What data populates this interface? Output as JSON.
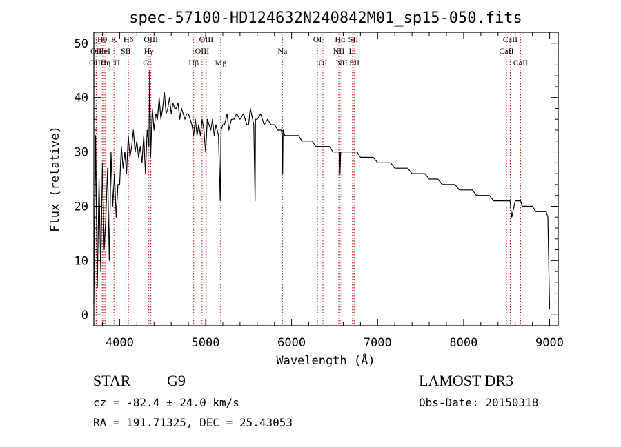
{
  "chart_data": {
    "type": "line",
    "title": "spec-57100-HD124632N240842M01_sp15-050.fits",
    "xlabel": "Wavelength (Å)",
    "ylabel": "Flux (relative)",
    "xlim": [
      3700,
      9100
    ],
    "ylim": [
      -2,
      52
    ],
    "xticks": [
      4000,
      5000,
      6000,
      7000,
      8000,
      9000
    ],
    "yticks": [
      0,
      10,
      20,
      30,
      40,
      50
    ],
    "series": [
      {
        "name": "spectrum",
        "x": [
          3700,
          3720,
          3740,
          3760,
          3780,
          3800,
          3820,
          3840,
          3860,
          3880,
          3900,
          3920,
          3940,
          3960,
          3980,
          4000,
          4020,
          4040,
          4060,
          4080,
          4100,
          4120,
          4140,
          4160,
          4180,
          4200,
          4220,
          4240,
          4260,
          4280,
          4300,
          4320,
          4340,
          4350,
          4360,
          4380,
          4400,
          4420,
          4440,
          4460,
          4480,
          4500,
          4520,
          4540,
          4560,
          4580,
          4600,
          4620,
          4640,
          4660,
          4680,
          4700,
          4720,
          4740,
          4760,
          4780,
          4800,
          4820,
          4840,
          4860,
          4880,
          4900,
          4920,
          4940,
          4960,
          4980,
          5000,
          5020,
          5040,
          5060,
          5080,
          5100,
          5120,
          5150,
          5170,
          5180,
          5200,
          5220,
          5250,
          5270,
          5300,
          5330,
          5360,
          5400,
          5440,
          5480,
          5500,
          5520,
          5560,
          5575,
          5580,
          5600,
          5640,
          5680,
          5720,
          5760,
          5800,
          5840,
          5880,
          5890,
          5896,
          5900,
          5920,
          5960,
          6000,
          6040,
          6080,
          6120,
          6160,
          6200,
          6240,
          6280,
          6320,
          6360,
          6400,
          6440,
          6480,
          6520,
          6560,
          6563,
          6570,
          6600,
          6640,
          6680,
          6720,
          6760,
          6800,
          6850,
          6900,
          6950,
          7000,
          7050,
          7100,
          7150,
          7200,
          7250,
          7300,
          7350,
          7400,
          7450,
          7500,
          7550,
          7600,
          7650,
          7700,
          7750,
          7800,
          7850,
          7900,
          7950,
          8000,
          8050,
          8100,
          8150,
          8200,
          8250,
          8300,
          8350,
          8400,
          8450,
          8500,
          8540,
          8560,
          8600,
          8640,
          8662,
          8680,
          8720,
          8760,
          8800,
          8840,
          8880,
          8920,
          8960,
          8980,
          9000
        ],
        "values": [
          2,
          33,
          5,
          25,
          8,
          28,
          12,
          18,
          27,
          10,
          30,
          20,
          26,
          18,
          24,
          24,
          31,
          27,
          30,
          26,
          33,
          29,
          31,
          34,
          30,
          32,
          29,
          31,
          28,
          33,
          26,
          34,
          31,
          45,
          29,
          38,
          34,
          37,
          36,
          40,
          36,
          38,
          41,
          37,
          38,
          40,
          37,
          39,
          38,
          38,
          39,
          36,
          38,
          37,
          36,
          37,
          37,
          36,
          35,
          33,
          36,
          33,
          35,
          33,
          36,
          34,
          30,
          36,
          35,
          34,
          36,
          33,
          35,
          33,
          21,
          34,
          35,
          35,
          37,
          34,
          36,
          36,
          37,
          36,
          37,
          35,
          35,
          38,
          35,
          21,
          36,
          36,
          37,
          35,
          36,
          35,
          35,
          34,
          34,
          33,
          26,
          34,
          33,
          33,
          33,
          33,
          33,
          32,
          32,
          32,
          32,
          31,
          31,
          31,
          31,
          31,
          30,
          30,
          30,
          26,
          30,
          30,
          30,
          30,
          30,
          30,
          29,
          29,
          29,
          29,
          28,
          28,
          28,
          28,
          27,
          27,
          27,
          27,
          26,
          26,
          26,
          26,
          25,
          25,
          25,
          24,
          24,
          24,
          24,
          23,
          23,
          23,
          23,
          22,
          22,
          22,
          22,
          21,
          21,
          21,
          21,
          21,
          18,
          21,
          21,
          21,
          20,
          20,
          20,
          20,
          19,
          19,
          19,
          19,
          18,
          1
        ]
      }
    ],
    "lines": [
      {
        "label": "OII",
        "wl": 3727,
        "tier": 1
      },
      {
        "label": "OIII",
        "wl": 3727,
        "tier": 2
      },
      {
        "label": "Hθ",
        "wl": 3798,
        "tier": 0
      },
      {
        "label": "HeI",
        "wl": 3820,
        "tier": 1
      },
      {
        "label": "Hη",
        "wl": 3835,
        "tier": 2
      },
      {
        "label": "K",
        "wl": 3934,
        "tier": 0
      },
      {
        "label": "H",
        "wl": 3969,
        "tier": 2
      },
      {
        "label": "SII",
        "wl": 4072,
        "tier": 1
      },
      {
        "label": "Hδ",
        "wl": 4102,
        "tier": 0
      },
      {
        "label": "OIII",
        "wl": 4363,
        "tier": 0
      },
      {
        "label": "Hγ",
        "wl": 4340,
        "tier": 1
      },
      {
        "label": "G",
        "wl": 4305,
        "tier": 2
      },
      {
        "label": "Hβ",
        "wl": 4861,
        "tier": 2
      },
      {
        "label": "OIII",
        "wl": 5007,
        "tier": 0
      },
      {
        "label": "OIII",
        "wl": 4959,
        "tier": 1
      },
      {
        "label": "Mg",
        "wl": 5175,
        "tier": 2
      },
      {
        "label": "Na",
        "wl": 5893,
        "tier": 1
      },
      {
        "label": "OI",
        "wl": 6300,
        "tier": 0
      },
      {
        "label": "OI",
        "wl": 6364,
        "tier": 2
      },
      {
        "label": "Hα",
        "wl": 6563,
        "tier": 0
      },
      {
        "label": "NII",
        "wl": 6548,
        "tier": 1
      },
      {
        "label": "NII",
        "wl": 6583,
        "tier": 2
      },
      {
        "label": "SII",
        "wl": 6717,
        "tier": 0
      },
      {
        "label": "Li",
        "wl": 6708,
        "tier": 1
      },
      {
        "label": "SII",
        "wl": 6731,
        "tier": 2
      },
      {
        "label": "CaII",
        "wl": 8542,
        "tier": 0
      },
      {
        "label": "CaII",
        "wl": 8498,
        "tier": 1
      },
      {
        "label": "CaII",
        "wl": 8662,
        "tier": 2
      }
    ]
  },
  "info": {
    "class": "STAR",
    "subclass": "G9",
    "survey": "LAMOST DR3",
    "cz": "cz = -82.4 ± 24.0 km/s",
    "obsdate": "Obs-Date: 20150318",
    "radec": "RA = 191.71325, DEC =  25.43053"
  }
}
